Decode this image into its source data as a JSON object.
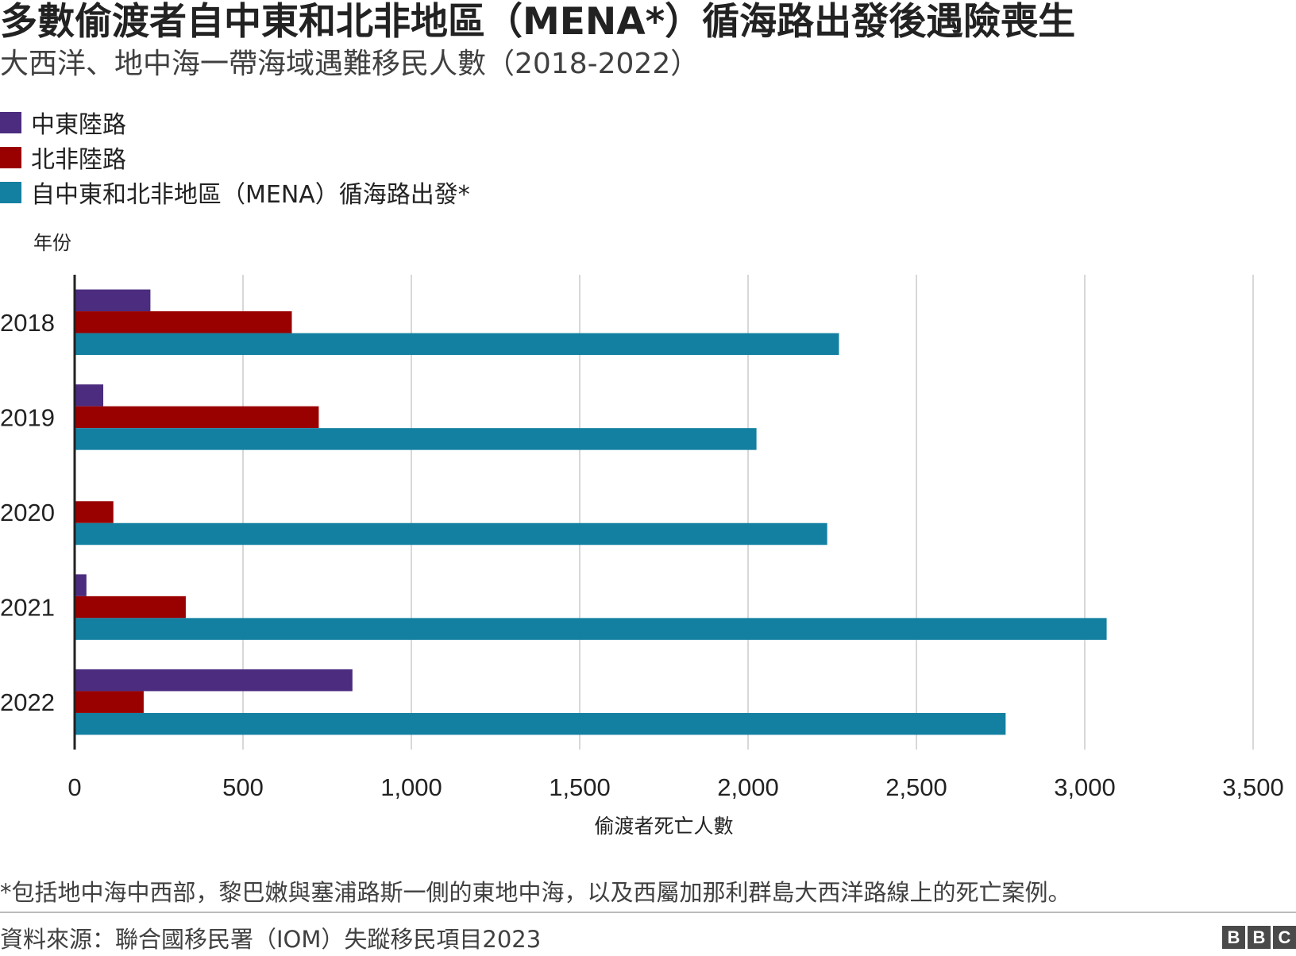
{
  "title": "多數偷渡者自中東和北非地區（MENA*）循海路出發後遇險喪生",
  "subtitle": "大西洋、地中海一帶海域遇難移民人數（2018-2022）",
  "legend": [
    {
      "label": "中東陸路",
      "color": "#4b2c7f"
    },
    {
      "label": "北非陸路",
      "color": "#990000"
    },
    {
      "label": "自中東和北非地區（MENA）循海路出發*",
      "color": "#1380a1"
    }
  ],
  "footnote": "*包括地中海中西部，黎巴嫩與塞浦路斯一側的東地中海，以及西屬加那利群島大西洋路線上的死亡案例。",
  "source": "資料來源：聯合國移民署（IOM）失蹤移民項目2023",
  "brand": [
    "B",
    "B",
    "C"
  ],
  "chart_data": {
    "type": "bar",
    "orientation": "horizontal",
    "categories": [
      "2018",
      "2019",
      "2020",
      "2021",
      "2022"
    ],
    "series": [
      {
        "name": "中東陸路",
        "color": "#4b2c7f",
        "values": [
          225,
          85,
          0,
          35,
          825
        ]
      },
      {
        "name": "北非陸路",
        "color": "#990000",
        "values": [
          645,
          725,
          115,
          330,
          205
        ]
      },
      {
        "name": "自中東和北非地區（MENA）循海路出發*",
        "color": "#1380a1",
        "values": [
          2270,
          2025,
          2235,
          3065,
          2765
        ]
      }
    ],
    "ylabel": "年份",
    "xlabel": "偷渡者死亡人數",
    "xlim": [
      0,
      3500
    ],
    "xticks": [
      0,
      500,
      1000,
      1500,
      2000,
      2500,
      3000,
      3500
    ],
    "xtick_labels": [
      "0",
      "500",
      "1,000",
      "1,500",
      "2,000",
      "2,500",
      "3,000",
      "3,500"
    ],
    "grid": "vertical",
    "legend_position": "top-left"
  }
}
